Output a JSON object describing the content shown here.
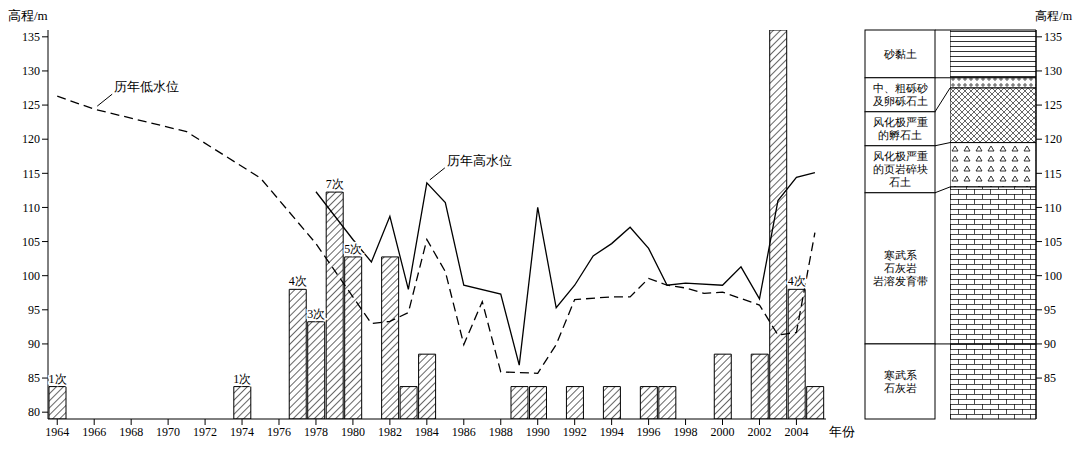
{
  "chart_data": [
    {
      "type": "bar",
      "x_label": "年份",
      "y_label": "高程/m",
      "xlim": [
        1963.5,
        2005.6
      ],
      "xticks": [
        1964,
        1966,
        1968,
        1970,
        1972,
        1974,
        1976,
        1978,
        1980,
        1982,
        1984,
        1986,
        1988,
        1990,
        1992,
        1994,
        1996,
        1998,
        2000,
        2002,
        2004
      ],
      "ylim": [
        79,
        136
      ],
      "yticks": [
        80,
        85,
        90,
        95,
        100,
        105,
        110,
        115,
        120,
        125,
        130,
        135
      ],
      "y2lim": [
        0,
        12
      ],
      "series": [
        {
          "type": "bar",
          "axis": "y2",
          "color": "#000000",
          "data_labels": true,
          "x": [
            1964,
            1974,
            1977,
            1978,
            1979,
            1980,
            1982,
            1983,
            1984,
            1989,
            1990,
            1992,
            1994,
            1996,
            1997,
            2000,
            2002,
            2003,
            2004,
            2005
          ],
          "values": [
            1,
            1,
            4,
            3,
            7,
            5,
            5,
            1,
            2,
            1,
            1,
            1,
            1,
            1,
            1,
            2,
            2,
            12,
            4,
            1
          ],
          "value_labels": [
            "1次",
            "1次",
            "4次",
            "3次",
            "7次",
            "5次",
            null,
            null,
            null,
            null,
            null,
            null,
            null,
            null,
            null,
            null,
            null,
            null,
            "4次",
            null
          ]
        },
        {
          "name": "历年低水位",
          "type": "line",
          "line_style": "dashed",
          "color": "#000000",
          "x": [
            1964,
            1966,
            1971,
            1975,
            1978,
            1981,
            1982,
            1983,
            1984,
            1985,
            1986,
            1987,
            1988,
            1990,
            1991,
            1992,
            1994,
            1995,
            1996,
            1997,
            1998,
            1999,
            2000,
            2002,
            2003,
            2004,
            2005
          ],
          "values": [
            126.3,
            124.4,
            121.1,
            114.3,
            104.7,
            93.0,
            93.3,
            94.6,
            105.3,
            100.6,
            89.9,
            96.2,
            85.9,
            85.7,
            89.9,
            96.5,
            96.9,
            96.9,
            99.6,
            98.6,
            98.2,
            97.4,
            97.6,
            95.7,
            91.3,
            91.7,
            106.3
          ]
        },
        {
          "name": "历年高水位",
          "type": "line",
          "line_style": "solid",
          "color": "#000000",
          "x": [
            1978,
            1980,
            1981,
            1982,
            1983,
            1984,
            1985,
            1986,
            1988,
            1989,
            1990,
            1991,
            1992,
            1993,
            1994,
            1995,
            1996,
            1997,
            1998,
            2000,
            2001,
            2002,
            2003,
            2004,
            2005
          ],
          "values": [
            112.3,
            105.3,
            102.0,
            108.7,
            98.0,
            113.6,
            110.7,
            98.6,
            97.3,
            86.9,
            110.0,
            95.3,
            98.6,
            102.9,
            104.7,
            107.1,
            104.0,
            98.6,
            98.9,
            98.6,
            101.3,
            96.6,
            111.0,
            114.4,
            115.1
          ]
        }
      ]
    },
    {
      "type": "strata",
      "y_label": "高程/m",
      "ylim": [
        79,
        136
      ],
      "yticks": [
        85,
        90,
        95,
        100,
        105,
        110,
        115,
        120,
        125,
        130,
        135
      ],
      "layers": [
        {
          "label_lines": [
            "砂黏土"
          ],
          "top": 136,
          "bottom": 129
        },
        {
          "label_lines": [
            "中、粗砾砂",
            "及卵砾石土"
          ],
          "top": 129,
          "bottom": 127.5
        },
        {
          "label_lines": [
            "风化极严重",
            "的孵石土"
          ],
          "top": 127.5,
          "bottom": 119.5
        },
        {
          "label_lines": [
            "风化极严重",
            "的页岩碎块",
            "石土"
          ],
          "top": 119.5,
          "bottom": 113
        },
        {
          "label_lines": [
            "寒武系",
            "石灰岩",
            "岩溶发育带"
          ],
          "top": 113,
          "bottom": 90
        },
        {
          "label_lines": [
            "寒武系",
            "石灰岩"
          ],
          "top": 90,
          "bottom": 79
        }
      ]
    }
  ]
}
